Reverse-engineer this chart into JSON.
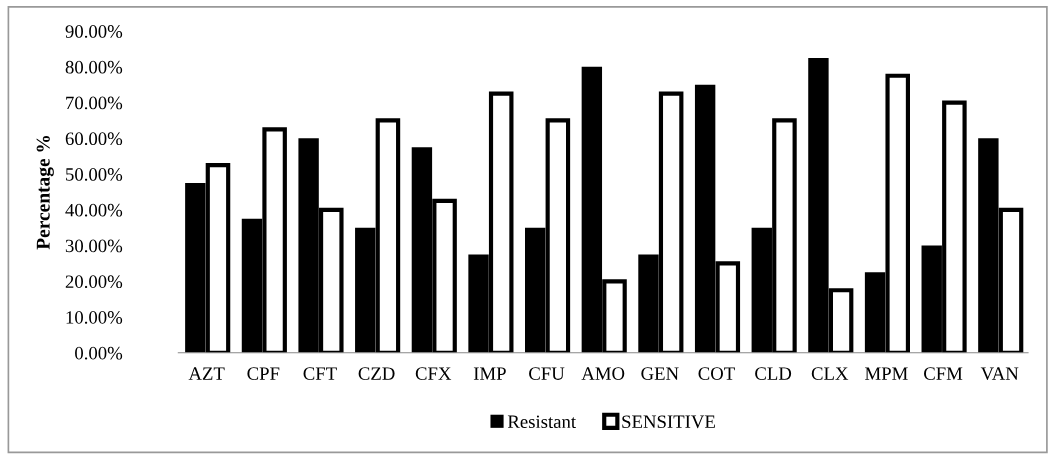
{
  "chart_data": {
    "type": "bar",
    "ylabel": "Percentage %",
    "categories": [
      "AZT",
      "CPF",
      "CFT",
      "CZD",
      "CFX",
      "IMP",
      "CFU",
      "AMO",
      "GEN",
      "COT",
      "CLD",
      "CLX",
      "MPM",
      "CFM",
      "VAN"
    ],
    "series": [
      {
        "name": "Resistant",
        "color": "#000000",
        "values": [
          47.5,
          37.5,
          60,
          35,
          57.5,
          27.5,
          35,
          80,
          27.5,
          75,
          35,
          82.5,
          22.5,
          30,
          60
        ]
      },
      {
        "name": "SENSITIVE",
        "color": "#ffffff",
        "values": [
          52.5,
          62.5,
          40,
          65,
          42.5,
          72.5,
          65,
          20,
          72.5,
          25,
          65,
          17.5,
          77.5,
          70,
          40
        ]
      }
    ],
    "ylim": [
      0,
      90
    ],
    "yticks": [
      {
        "value": 0,
        "label": "0.00%"
      },
      {
        "value": 10,
        "label": "10.00%"
      },
      {
        "value": 20,
        "label": "20.00%"
      },
      {
        "value": 30,
        "label": "30.00%"
      },
      {
        "value": 40,
        "label": "40.00%"
      },
      {
        "value": 50,
        "label": "50.00%"
      },
      {
        "value": 60,
        "label": "60.00%"
      },
      {
        "value": 70,
        "label": "70.00%"
      },
      {
        "value": 80,
        "label": "80.00%"
      },
      {
        "value": 90,
        "label": "90.00%"
      }
    ],
    "grid": false,
    "legend": "bottom"
  }
}
